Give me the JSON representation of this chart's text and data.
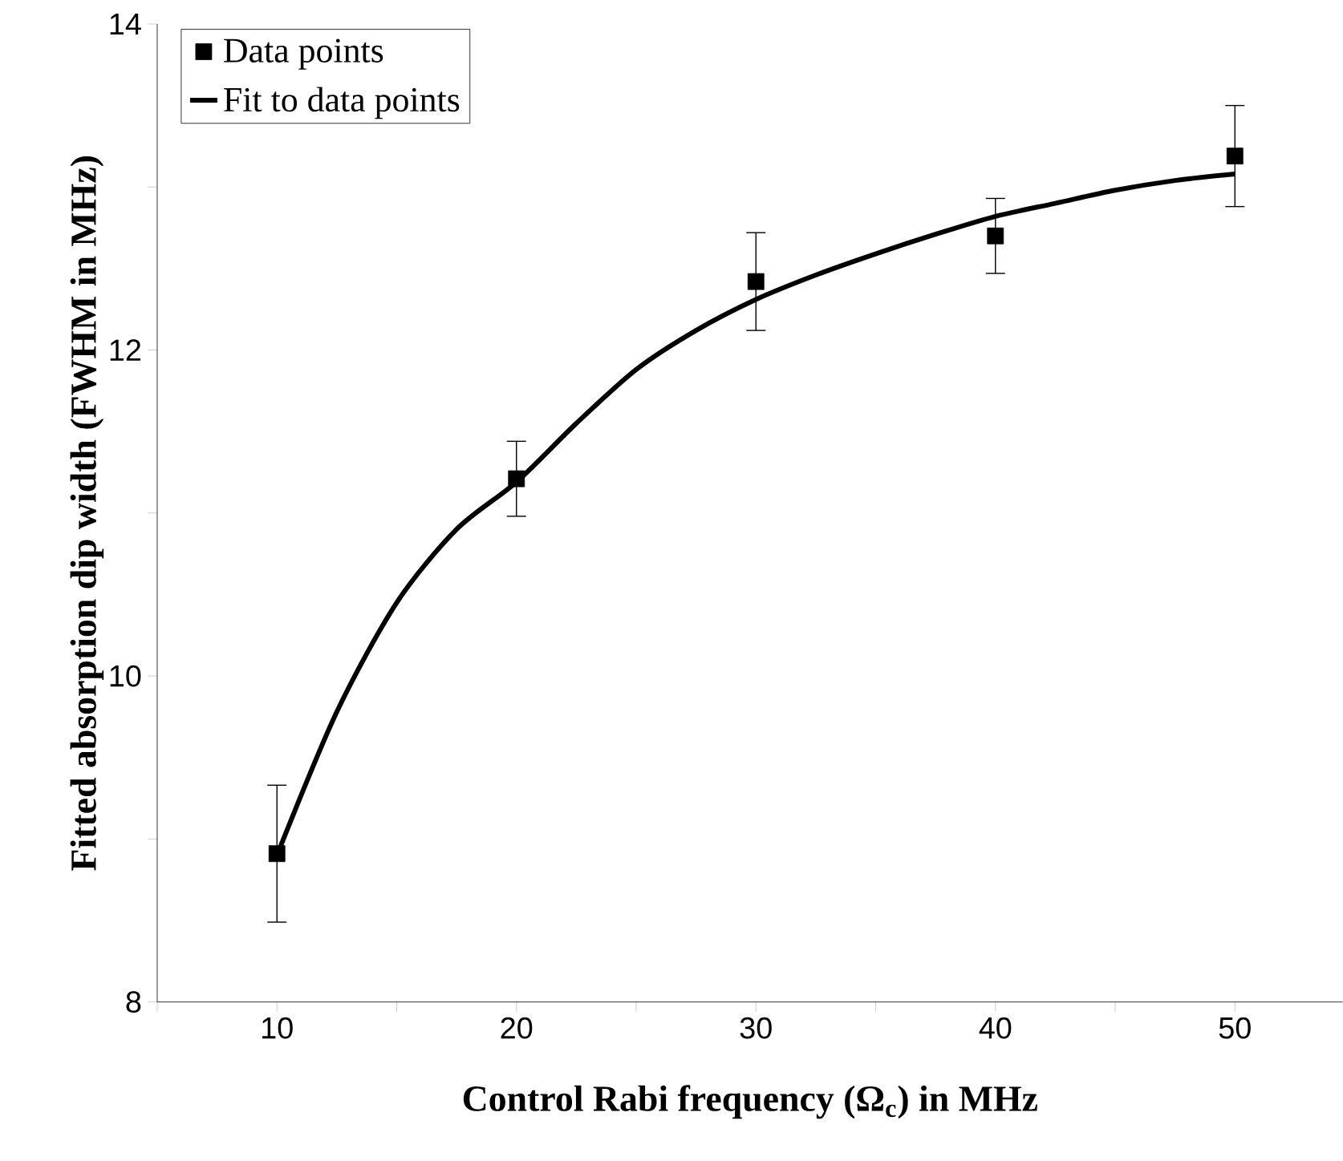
{
  "chart_data": {
    "type": "scatter",
    "xlabel": "Control Rabi frequency (Ω$_{c}$) in MHz",
    "ylabel": "Fitted absorption dip width (FWHM in MHz)",
    "xlim": [
      5,
      54.5
    ],
    "ylim": [
      8,
      14
    ],
    "xticks": [
      {
        "value": 5,
        "label": null
      },
      10,
      {
        "value": 15,
        "label": null
      },
      20,
      {
        "value": 25,
        "label": null
      },
      30,
      {
        "value": 35,
        "label": null
      },
      40,
      {
        "value": 45,
        "label": null
      },
      50
    ],
    "yticks": [
      8,
      {
        "value": 9,
        "label": null
      },
      10,
      {
        "value": 11,
        "label": null
      },
      12,
      {
        "value": 13,
        "label": null
      },
      14
    ],
    "legend": "top left",
    "grid": false,
    "series": [
      {
        "name": "Data points",
        "marker": "square",
        "color": "#000000",
        "x": [
          10,
          20,
          30,
          40,
          50
        ],
        "values": [
          8.91,
          11.21,
          12.42,
          12.7,
          13.19
        ],
        "errors": [
          0.42,
          0.23,
          0.3,
          0.23,
          0.31
        ]
      },
      {
        "name": "Fit to data points",
        "type": "line",
        "marker": "none",
        "line_style": "solid",
        "color": "#000000",
        "x": [
          10,
          12.5,
          15,
          17.5,
          20,
          22.5,
          25,
          27.5,
          30,
          32.5,
          35,
          37.5,
          40,
          42.5,
          45,
          47.5,
          50
        ],
        "values": [
          8.9,
          9.78,
          10.45,
          10.9,
          11.19,
          11.55,
          11.88,
          12.12,
          12.31,
          12.46,
          12.59,
          12.71,
          12.82,
          12.9,
          12.98,
          13.04,
          13.08
        ]
      }
    ]
  }
}
